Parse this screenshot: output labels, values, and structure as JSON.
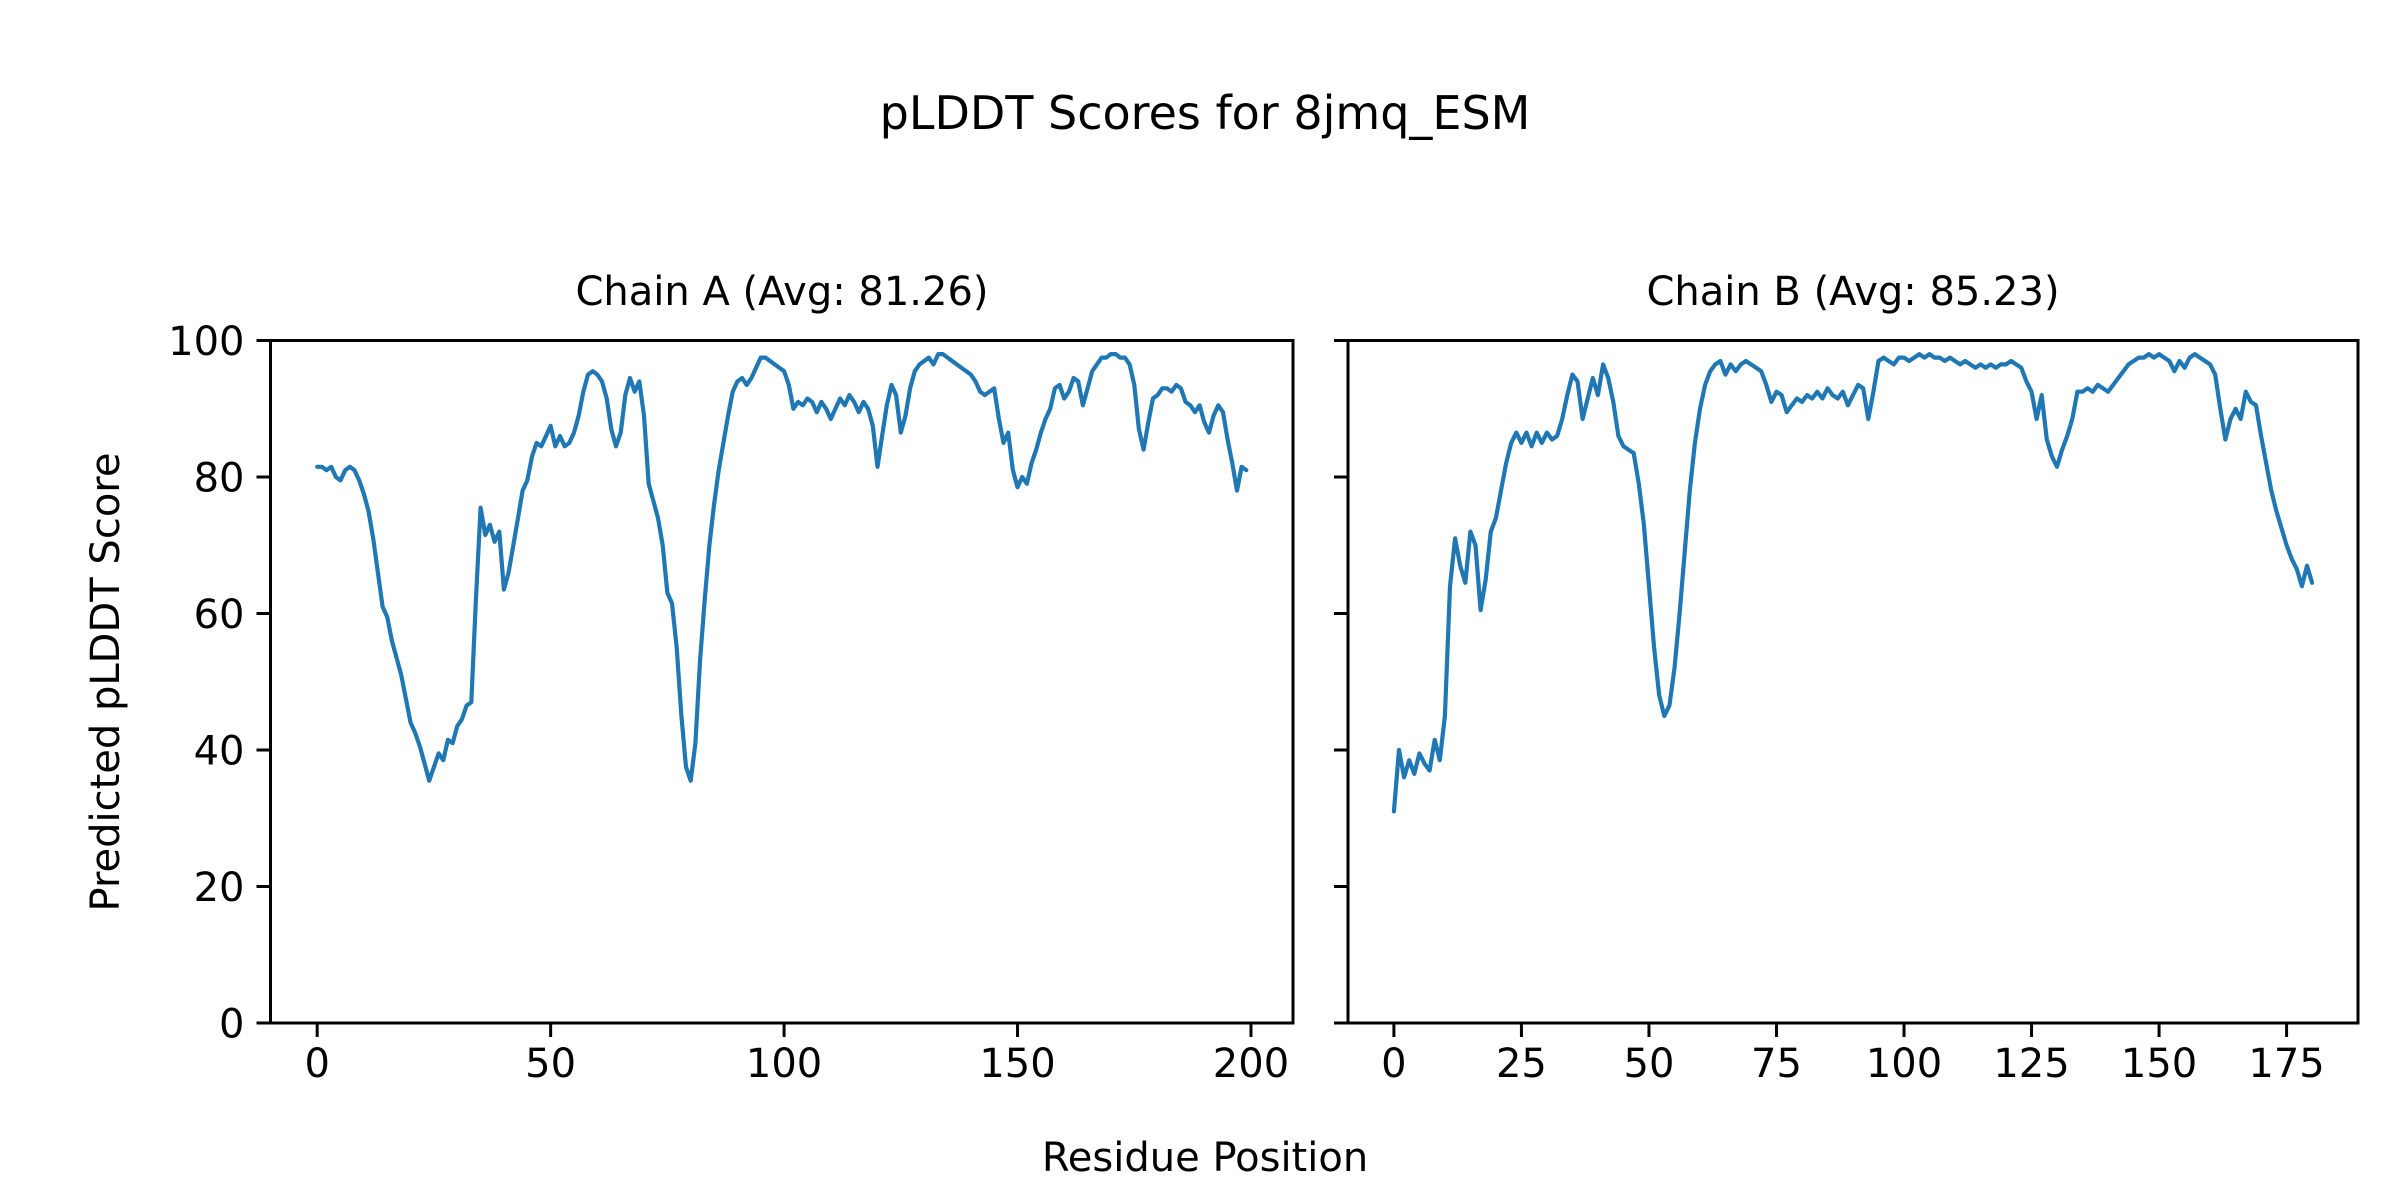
{
  "figure": {
    "title": "pLDDT Scores for 8jmq_ESM",
    "xlabel": "Residue Position",
    "ylabel": "Predicted pLDDT Score",
    "background": "#ffffff",
    "text_color": "#000000",
    "spine_color": "#000000"
  },
  "chart_data": [
    {
      "type": "line",
      "title": "Chain A (Avg: 81.26)",
      "chain": "A",
      "avg_plddt": 81.26,
      "line_color": "#1f77b4",
      "x_start": 0,
      "xlim": [
        -10,
        209
      ],
      "ylim": [
        0,
        100
      ],
      "xticks": [
        0,
        50,
        100,
        150,
        200
      ],
      "yticks": [
        0,
        20,
        40,
        60,
        80,
        100
      ],
      "show_ytick_labels": true,
      "grid": false,
      "values": [
        81.5,
        81.5,
        81.0,
        81.5,
        80.0,
        79.5,
        81.0,
        81.5,
        81.0,
        79.5,
        77.5,
        75.0,
        71.0,
        66.0,
        61.0,
        59.5,
        56.0,
        53.5,
        51.0,
        47.5,
        44.0,
        42.5,
        40.5,
        38.0,
        35.5,
        37.5,
        39.5,
        38.5,
        41.5,
        41.0,
        43.5,
        44.5,
        46.5,
        47.0,
        62.0,
        75.5,
        71.5,
        73.0,
        70.5,
        72.0,
        63.5,
        66.0,
        70.0,
        74.0,
        78.0,
        79.5,
        83.0,
        85.0,
        84.5,
        86.0,
        87.5,
        84.5,
        86.0,
        84.5,
        85.0,
        86.5,
        89.0,
        92.5,
        95.0,
        95.5,
        95.0,
        94.0,
        91.5,
        87.0,
        84.5,
        86.5,
        92.0,
        94.5,
        92.5,
        94.0,
        89.0,
        79.0,
        76.5,
        74.0,
        70.0,
        63.0,
        61.5,
        55.0,
        45.0,
        37.5,
        35.5,
        41.0,
        53.0,
        62.0,
        70.0,
        76.0,
        81.0,
        85.0,
        89.0,
        92.5,
        94.0,
        94.5,
        93.5,
        94.5,
        96.0,
        97.5,
        97.5,
        97.0,
        96.5,
        96.0,
        95.5,
        93.5,
        90.0,
        91.0,
        90.5,
        91.5,
        91.0,
        89.5,
        91.0,
        90.0,
        88.5,
        90.0,
        91.5,
        90.5,
        92.0,
        91.0,
        89.5,
        91.0,
        90.0,
        87.5,
        81.5,
        86.0,
        90.5,
        93.5,
        92.0,
        86.5,
        89.0,
        93.0,
        95.5,
        96.5,
        97.0,
        97.5,
        96.5,
        98.0,
        98.0,
        97.5,
        97.0,
        96.5,
        96.0,
        95.5,
        95.0,
        94.0,
        92.5,
        92.0,
        92.5,
        93.0,
        88.5,
        85.0,
        86.5,
        81.0,
        78.5,
        80.0,
        79.0,
        82.0,
        84.0,
        86.5,
        88.5,
        90.0,
        93.0,
        93.5,
        91.5,
        92.5,
        94.5,
        94.0,
        90.5,
        93.0,
        95.5,
        96.5,
        97.5,
        97.5,
        98.0,
        98.0,
        97.5,
        97.5,
        96.5,
        93.5,
        87.0,
        84.0,
        88.0,
        91.5,
        92.0,
        93.0,
        93.0,
        92.5,
        93.5,
        93.0,
        91.0,
        90.5,
        89.5,
        90.5,
        88.0,
        86.5,
        89.0,
        90.5,
        89.5,
        85.5,
        82.0,
        78.0,
        81.5,
        81.0
      ]
    },
    {
      "type": "line",
      "title": "Chain B (Avg: 85.23)",
      "chain": "B",
      "avg_plddt": 85.23,
      "line_color": "#1f77b4",
      "x_start": 0,
      "xlim": [
        -9,
        189
      ],
      "ylim": [
        0,
        100
      ],
      "xticks": [
        0,
        25,
        50,
        75,
        100,
        125,
        150,
        175
      ],
      "yticks": [
        0,
        20,
        40,
        60,
        80,
        100
      ],
      "show_ytick_labels": false,
      "grid": false,
      "values": [
        31.0,
        40.0,
        36.0,
        38.5,
        36.5,
        39.5,
        38.0,
        37.0,
        41.5,
        38.5,
        45.0,
        64.0,
        71.0,
        67.0,
        64.5,
        72.0,
        70.0,
        60.5,
        65.0,
        72.0,
        74.0,
        78.0,
        82.0,
        85.0,
        86.5,
        85.0,
        86.5,
        84.5,
        86.5,
        85.0,
        86.5,
        85.5,
        86.0,
        88.5,
        92.0,
        95.0,
        94.0,
        88.5,
        91.5,
        94.5,
        92.0,
        96.5,
        94.5,
        91.0,
        86.0,
        84.5,
        84.0,
        83.5,
        79.0,
        73.0,
        64.0,
        55.0,
        48.0,
        45.0,
        46.5,
        52.0,
        60.0,
        69.0,
        78.0,
        85.0,
        90.0,
        93.5,
        95.5,
        96.5,
        97.0,
        95.0,
        96.5,
        95.5,
        96.5,
        97.0,
        96.5,
        96.0,
        95.5,
        93.5,
        91.0,
        92.5,
        92.0,
        89.5,
        90.5,
        91.5,
        91.0,
        92.0,
        91.5,
        92.5,
        91.5,
        93.0,
        92.0,
        91.5,
        92.5,
        90.5,
        92.0,
        93.5,
        93.0,
        88.5,
        92.5,
        97.0,
        97.5,
        97.0,
        96.5,
        97.5,
        97.5,
        97.0,
        97.5,
        98.0,
        97.5,
        98.0,
        97.5,
        97.5,
        97.0,
        97.5,
        97.0,
        96.5,
        97.0,
        96.5,
        96.0,
        96.5,
        96.0,
        96.5,
        96.0,
        96.5,
        96.5,
        97.0,
        96.5,
        96.0,
        94.0,
        92.5,
        88.5,
        92.0,
        85.5,
        83.0,
        81.5,
        84.0,
        86.0,
        88.5,
        92.5,
        92.5,
        93.0,
        92.5,
        93.5,
        93.0,
        92.5,
        93.5,
        94.5,
        95.5,
        96.5,
        97.0,
        97.5,
        97.5,
        98.0,
        97.5,
        98.0,
        97.5,
        97.0,
        95.5,
        97.0,
        96.0,
        97.5,
        98.0,
        97.5,
        97.0,
        96.5,
        95.0,
        90.0,
        85.5,
        88.5,
        90.0,
        88.5,
        92.5,
        91.0,
        90.5,
        86.0,
        82.0,
        78.0,
        75.0,
        72.5,
        70.0,
        68.0,
        66.5,
        64.0,
        67.0,
        64.5
      ]
    }
  ]
}
